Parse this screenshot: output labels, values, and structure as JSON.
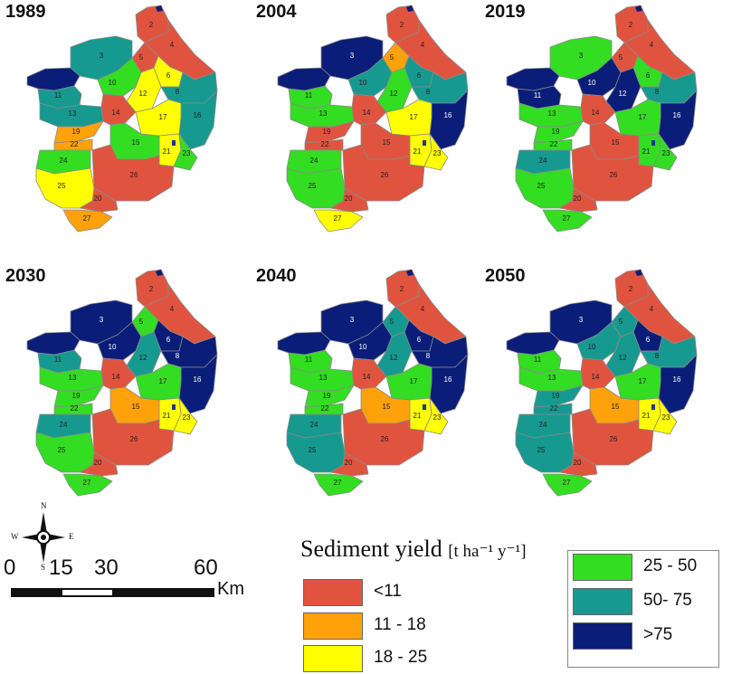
{
  "colors": {
    "lt11": "#e0543f",
    "r11_18": "#ffa10a",
    "r18_25": "#ffff00",
    "r25_50": "#33dd22",
    "r50_75": "#169a90",
    "gt75": "#0a1d78"
  },
  "maps": [
    {
      "year": "1989",
      "classes": {
        "2": "lt11",
        "4": "lt11",
        "5": "lt11",
        "3": "r50_75",
        "W": "gt75",
        "10": "r25_50",
        "11": "r50_75",
        "13": "r50_75",
        "12": "r18_25",
        "6": "r18_25",
        "8": "r50_75",
        "16": "r50_75",
        "14": "lt11",
        "19": "r11_18",
        "22": "r11_18",
        "17": "r18_25",
        "15": "r25_50",
        "21": "r18_25",
        "23": "r25_50",
        "24": "r25_50",
        "26": "lt11",
        "25": "r18_25",
        "20": "lt11",
        "27": "r11_18"
      }
    },
    {
      "year": "2004",
      "classes": {
        "2": "lt11",
        "4": "lt11",
        "5": "r11_18",
        "3": "gt75",
        "W": "gt75",
        "10": "r50_75",
        "11": "r25_50",
        "13": "r25_50",
        "12": "r25_50",
        "6": "r50_75",
        "8": "r50_75",
        "16": "gt75",
        "14": "lt11",
        "19": "lt11",
        "22": "lt11",
        "17": "r18_25",
        "15": "lt11",
        "21": "r18_25",
        "23": "r18_25",
        "24": "r25_50",
        "26": "lt11",
        "25": "r25_50",
        "20": "lt11",
        "27": "r18_25"
      }
    },
    {
      "year": "2019",
      "classes": {
        "2": "lt11",
        "4": "lt11",
        "5": "lt11",
        "3": "r25_50",
        "W": "gt75",
        "10": "gt75",
        "11": "gt75",
        "13": "r25_50",
        "12": "gt75",
        "6": "r25_50",
        "8": "r50_75",
        "16": "gt75",
        "14": "lt11",
        "19": "r25_50",
        "22": "r25_50",
        "17": "r25_50",
        "15": "lt11",
        "21": "r25_50",
        "23": "r25_50",
        "24": "r50_75",
        "26": "lt11",
        "25": "r25_50",
        "20": "lt11",
        "27": "r25_50"
      }
    },
    {
      "year": "2030",
      "classes": {
        "2": "lt11",
        "4": "lt11",
        "5": "r25_50",
        "3": "gt75",
        "W": "gt75",
        "10": "gt75",
        "11": "r50_75",
        "13": "r25_50",
        "12": "r50_75",
        "6": "gt75",
        "8": "gt75",
        "16": "gt75",
        "14": "lt11",
        "19": "r25_50",
        "22": "r25_50",
        "17": "r25_50",
        "15": "r11_18",
        "21": "r18_25",
        "23": "r18_25",
        "24": "r50_75",
        "26": "lt11",
        "25": "r25_50",
        "20": "lt11",
        "27": "r25_50"
      }
    },
    {
      "year": "2040",
      "classes": {
        "2": "lt11",
        "4": "lt11",
        "5": "r50_75",
        "3": "gt75",
        "W": "gt75",
        "10": "gt75",
        "11": "r25_50",
        "13": "r25_50",
        "12": "r50_75",
        "6": "gt75",
        "8": "gt75",
        "16": "gt75",
        "14": "lt11",
        "19": "r25_50",
        "22": "r25_50",
        "17": "r25_50",
        "15": "r11_18",
        "21": "r18_25",
        "23": "r18_25",
        "24": "r50_75",
        "26": "lt11",
        "25": "r50_75",
        "20": "lt11",
        "27": "r25_50"
      }
    },
    {
      "year": "2050",
      "classes": {
        "2": "lt11",
        "4": "lt11",
        "5": "r50_75",
        "3": "gt75",
        "W": "gt75",
        "10": "r50_75",
        "11": "r25_50",
        "13": "r25_50",
        "12": "r50_75",
        "6": "gt75",
        "8": "r50_75",
        "16": "gt75",
        "14": "lt11",
        "19": "r50_75",
        "22": "r50_75",
        "17": "r25_50",
        "15": "r11_18",
        "21": "r18_25",
        "23": "r18_25",
        "24": "r50_75",
        "26": "lt11",
        "25": "r50_75",
        "20": "lt11",
        "27": "r25_50"
      }
    }
  ],
  "legend": {
    "title": "Sediment yield",
    "unit": "[t ha⁻¹ y⁻¹]",
    "items": [
      {
        "label": "<11",
        "class": "lt11"
      },
      {
        "label": "11 - 18",
        "class": "r11_18"
      },
      {
        "label": "18 - 25",
        "class": "r18_25"
      },
      {
        "label": "25 - 50",
        "class": "r25_50"
      },
      {
        "label": "50- 75",
        "class": "r50_75"
      },
      {
        "label": ">75",
        "class": "gt75"
      }
    ]
  },
  "compass": {
    "n": "N",
    "s": "S",
    "e": "E",
    "w": "W"
  },
  "scale_bar": {
    "ticks": [
      "0",
      "15",
      "30",
      "60"
    ],
    "unit": "Km"
  }
}
